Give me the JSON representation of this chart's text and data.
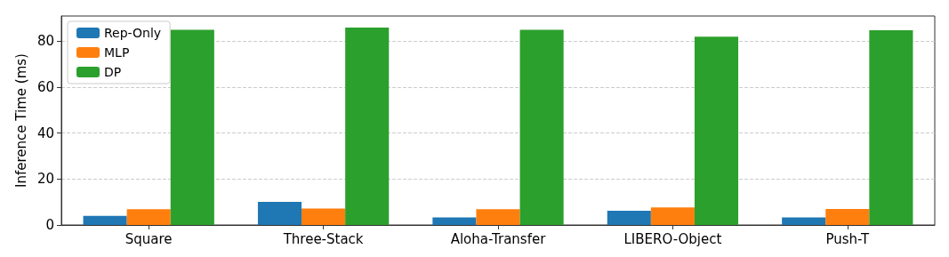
{
  "chart_data": {
    "type": "bar",
    "ylabel": "Inference Time (ms)",
    "categories": [
      "Square",
      "Three-Stack",
      "Aloha-Transfer",
      "LIBERO-Object",
      "Push-T"
    ],
    "series": [
      {
        "name": "Rep-Only",
        "color": "#1f77b4",
        "values": [
          4,
          10.1,
          3.3,
          6.2,
          3.3
        ]
      },
      {
        "name": "MLP",
        "color": "#ff7f0e",
        "values": [
          6.9,
          7.2,
          6.9,
          7.6,
          7
        ]
      },
      {
        "name": "DP",
        "color": "#2ca02c",
        "values": [
          85,
          86,
          85,
          82,
          84.8
        ]
      }
    ],
    "ylim": [
      0,
      91
    ],
    "yticks": [
      0,
      20,
      40,
      60,
      80
    ],
    "grid": "y",
    "legend": "top left"
  }
}
